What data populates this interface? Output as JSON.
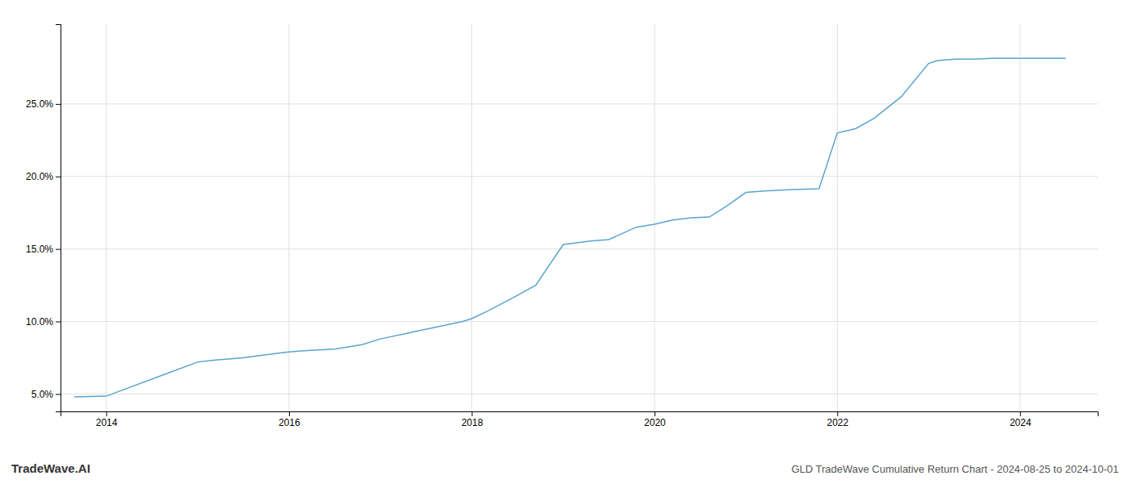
{
  "chart_data": {
    "type": "line",
    "title": "GLD TradeWave Cumulative Return Chart - 2024-08-25 to 2024-10-01",
    "annotations": [
      "TradeWave.AI"
    ],
    "x": [
      2013.65,
      2014.0,
      2014.7,
      2015.0,
      2015.2,
      2015.5,
      2015.8,
      2016.0,
      2016.2,
      2016.5,
      2016.8,
      2017.0,
      2017.3,
      2017.6,
      2017.9,
      2018.0,
      2018.2,
      2018.5,
      2018.7,
      2019.0,
      2019.3,
      2019.5,
      2019.8,
      2020.0,
      2020.2,
      2020.4,
      2020.6,
      2020.8,
      2021.0,
      2021.2,
      2021.5,
      2021.8,
      2022.0,
      2022.2,
      2022.4,
      2022.7,
      2023.0,
      2023.1,
      2023.3,
      2023.5,
      2023.7,
      2023.9,
      2024.0,
      2024.5
    ],
    "values": [
      4.8,
      4.85,
      6.5,
      7.2,
      7.35,
      7.5,
      7.75,
      7.9,
      8.0,
      8.1,
      8.4,
      8.8,
      9.2,
      9.6,
      10.0,
      10.2,
      10.8,
      11.8,
      12.5,
      15.3,
      15.55,
      15.65,
      16.5,
      16.7,
      17.0,
      17.15,
      17.2,
      18.0,
      18.9,
      19.0,
      19.1,
      19.15,
      23.0,
      23.3,
      24.0,
      25.5,
      27.8,
      28.0,
      28.1,
      28.1,
      28.15,
      28.15,
      28.15,
      28.15
    ],
    "color": "#5ba3d0",
    "xlim": [
      2013.5,
      2024.85
    ],
    "ylim": [
      3.8,
      30.5
    ],
    "xticks": [
      2014,
      2016,
      2018,
      2020,
      2022,
      2024
    ],
    "yticks": [
      {
        "value": 5.0,
        "label": "5.0%"
      },
      {
        "value": 10.0,
        "label": "10.0%"
      },
      {
        "value": 15.0,
        "label": "15.0%"
      },
      {
        "value": 20.0,
        "label": "20.0%"
      },
      {
        "value": 25.0,
        "label": "25.0%"
      }
    ],
    "grid": true
  }
}
